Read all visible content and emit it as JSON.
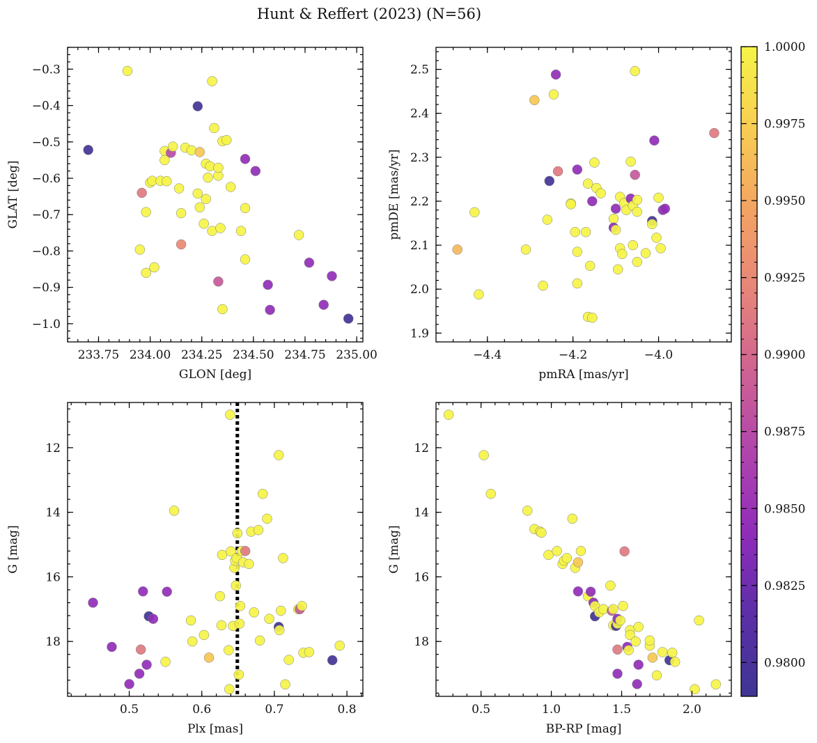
{
  "figure": {
    "title": "Hunt & Reffert (2023) (N=56)"
  },
  "colorbar": {
    "cmap": "plasma",
    "vmin": 0.9789,
    "vmax": 1.0,
    "ticks": [
      0.98,
      0.9825,
      0.985,
      0.9875,
      0.99,
      0.9925,
      0.995,
      0.9975,
      1.0
    ],
    "tick_labels": [
      "0.9800",
      "0.9825",
      "0.9850",
      "0.9875",
      "0.9900",
      "0.9925",
      "0.9950",
      "0.9975",
      "1.0000"
    ],
    "stops": [
      "#3e3594",
      "#5b2fa8",
      "#8f2dba",
      "#b044ad",
      "#cf6292",
      "#e7847a",
      "#f3a363",
      "#f8cd52",
      "#f5f447"
    ]
  },
  "chart_data": [
    {
      "type": "scatter",
      "xlabel": "GLON [deg]",
      "ylabel": "GLAT [deg]",
      "xlim": [
        233.6,
        235.03
      ],
      "ylim": [
        -1.05,
        -0.24
      ],
      "yinvert": false,
      "xticks": [
        233.75,
        234.0,
        234.25,
        234.5,
        234.75,
        235.0
      ],
      "xtick_labels": [
        "233.75",
        "234.00",
        "234.25",
        "234.50",
        "234.75",
        "235.00"
      ],
      "yticks": [
        -1.0,
        -0.9,
        -0.8,
        -0.7,
        -0.6,
        -0.5,
        -0.4,
        -0.3
      ],
      "ytick_labels": [
        "−1.0",
        "−0.9",
        "−0.8",
        "−0.7",
        "−0.6",
        "−0.5",
        "−0.4",
        "−0.3"
      ],
      "x_minor_step": 0.05,
      "y_minor_step": 0.02,
      "points": [
        [
          233.7,
          -0.522,
          0.9792
        ],
        [
          233.89,
          -0.305,
          1.0
        ],
        [
          234.23,
          -0.402,
          0.9792
        ],
        [
          234.3,
          -0.333,
          1.0
        ],
        [
          233.96,
          -0.64,
          0.9912
        ],
        [
          233.95,
          -0.796,
          1.0
        ],
        [
          233.98,
          -0.86,
          1.0
        ],
        [
          233.98,
          -0.693,
          1.0
        ],
        [
          234.0,
          -0.612,
          1.0
        ],
        [
          234.01,
          -0.607,
          1.0
        ],
        [
          234.02,
          -0.845,
          1.0
        ],
        [
          234.05,
          -0.607,
          1.0
        ],
        [
          234.07,
          -0.525,
          1.0
        ],
        [
          234.07,
          -0.55,
          1.0
        ],
        [
          234.08,
          -0.608,
          1.0
        ],
        [
          234.1,
          -0.53,
          0.9875
        ],
        [
          234.11,
          -0.513,
          1.0
        ],
        [
          234.14,
          -0.628,
          1.0
        ],
        [
          234.15,
          -0.696,
          1.0
        ],
        [
          234.15,
          -0.782,
          0.9925
        ],
        [
          234.17,
          -0.516,
          1.0
        ],
        [
          234.2,
          -0.523,
          1.0
        ],
        [
          234.23,
          -0.642,
          1.0
        ],
        [
          234.24,
          -0.68,
          1.0
        ],
        [
          234.24,
          -0.528,
          0.997
        ],
        [
          234.26,
          -0.725,
          1.0
        ],
        [
          234.27,
          -0.657,
          1.0
        ],
        [
          234.27,
          -0.56,
          1.0
        ],
        [
          234.28,
          -0.598,
          1.0
        ],
        [
          234.29,
          -0.567,
          1.0
        ],
        [
          234.3,
          -0.745,
          1.0
        ],
        [
          234.31,
          -0.462,
          1.0
        ],
        [
          234.33,
          -0.593,
          1.0
        ],
        [
          234.33,
          -0.571,
          1.0
        ],
        [
          234.33,
          -0.884,
          0.9887
        ],
        [
          234.34,
          -0.737,
          1.0
        ],
        [
          234.35,
          -0.498,
          1.0
        ],
        [
          234.35,
          -0.96,
          1.0
        ],
        [
          234.37,
          -0.495,
          1.0
        ],
        [
          234.39,
          -0.624,
          1.0
        ],
        [
          234.44,
          -0.745,
          1.0
        ],
        [
          234.46,
          -0.547,
          0.9843
        ],
        [
          234.46,
          -0.682,
          1.0
        ],
        [
          234.46,
          -0.823,
          1.0
        ],
        [
          234.51,
          -0.58,
          0.9843
        ],
        [
          234.57,
          -0.893,
          0.9843
        ],
        [
          234.58,
          -0.962,
          0.9843
        ],
        [
          234.72,
          -0.756,
          1.0
        ],
        [
          234.77,
          -0.832,
          0.9843
        ],
        [
          234.84,
          -0.948,
          0.9843
        ],
        [
          234.88,
          -0.869,
          0.9843
        ],
        [
          234.96,
          -0.986,
          0.9792
        ]
      ]
    },
    {
      "type": "scatter",
      "xlabel": "pmRA [mas/yr]",
      "ylabel": "pmDE [mas/yr]",
      "xlim": [
        -4.52,
        -3.83
      ],
      "ylim": [
        1.88,
        2.55
      ],
      "yinvert": false,
      "xticks": [
        -4.4,
        -4.2,
        -4.0
      ],
      "xtick_labels": [
        "−4.4",
        "−4.2",
        "−4.0"
      ],
      "yticks": [
        1.9,
        2.0,
        2.1,
        2.2,
        2.3,
        2.4,
        2.5
      ],
      "ytick_labels": [
        "1.9",
        "2.0",
        "2.1",
        "2.2",
        "2.3",
        "2.4",
        "2.5"
      ],
      "x_minor_step": 0.04,
      "y_minor_step": 0.02,
      "points": [
        [
          -4.47,
          2.09,
          0.996
        ],
        [
          -4.43,
          2.175,
          1.0
        ],
        [
          -4.42,
          1.988,
          1.0
        ],
        [
          -4.31,
          2.09,
          1.0
        ],
        [
          -4.29,
          2.43,
          0.997
        ],
        [
          -4.27,
          2.008,
          1.0
        ],
        [
          -4.26,
          2.158,
          1.0
        ],
        [
          -4.255,
          2.246,
          0.9792
        ],
        [
          -4.245,
          2.443,
          1.0
        ],
        [
          -4.24,
          2.488,
          0.9843
        ],
        [
          -4.235,
          2.268,
          0.9912
        ],
        [
          -4.205,
          2.195,
          1.0
        ],
        [
          -4.205,
          2.193,
          1.0
        ],
        [
          -4.195,
          2.13,
          1.0
        ],
        [
          -4.19,
          2.085,
          1.0
        ],
        [
          -4.19,
          2.013,
          1.0
        ],
        [
          -4.19,
          2.272,
          0.9843
        ],
        [
          -4.17,
          2.13,
          1.0
        ],
        [
          -4.165,
          2.24,
          1.0
        ],
        [
          -4.165,
          1.937,
          1.0
        ],
        [
          -4.16,
          2.053,
          1.0
        ],
        [
          -4.155,
          1.935,
          1.0
        ],
        [
          -4.155,
          2.2,
          0.9843
        ],
        [
          -4.15,
          2.288,
          1.0
        ],
        [
          -4.145,
          2.23,
          1.0
        ],
        [
          -4.135,
          2.218,
          1.0
        ],
        [
          -4.105,
          2.16,
          1.0
        ],
        [
          -4.105,
          2.14,
          0.9843
        ],
        [
          -4.1,
          2.135,
          1.0
        ],
        [
          -4.1,
          2.183,
          0.9843
        ],
        [
          -4.095,
          2.045,
          1.0
        ],
        [
          -4.09,
          2.21,
          1.0
        ],
        [
          -4.09,
          2.093,
          1.0
        ],
        [
          -4.085,
          2.08,
          1.0
        ],
        [
          -4.08,
          2.196,
          1.0
        ],
        [
          -4.075,
          2.18,
          1.0
        ],
        [
          -4.065,
          2.29,
          1.0
        ],
        [
          -4.065,
          2.206,
          0.9843
        ],
        [
          -4.06,
          2.19,
          1.0
        ],
        [
          -4.06,
          2.1,
          1.0
        ],
        [
          -4.055,
          2.496,
          1.0
        ],
        [
          -4.055,
          2.26,
          0.9887
        ],
        [
          -4.05,
          2.176,
          1.0
        ],
        [
          -4.05,
          2.203,
          1.0
        ],
        [
          -4.05,
          2.062,
          1.0
        ],
        [
          -4.03,
          2.082,
          1.0
        ],
        [
          -4.015,
          2.155,
          0.9792
        ],
        [
          -4.015,
          2.148,
          1.0
        ],
        [
          -4.01,
          2.338,
          0.9843
        ],
        [
          -4.005,
          2.117,
          1.0
        ],
        [
          -4.0,
          2.208,
          1.0
        ],
        [
          -3.995,
          2.093,
          1.0
        ],
        [
          -3.99,
          2.18,
          0.9843
        ],
        [
          -3.985,
          2.183,
          0.9843
        ],
        [
          -3.87,
          2.355,
          0.9912
        ]
      ]
    },
    {
      "type": "scatter",
      "xlabel": "Plx [mas]",
      "ylabel": "G [mag]",
      "xlim": [
        0.415,
        0.822
      ],
      "ylim": [
        10.6,
        19.7
      ],
      "yinvert": true,
      "xticks": [
        0.5,
        0.6,
        0.7,
        0.8
      ],
      "xtick_labels": [
        "0.5",
        "0.6",
        "0.7",
        "0.8"
      ],
      "yticks": [
        12,
        14,
        16,
        18
      ],
      "ytick_labels": [
        "12",
        "14",
        "16",
        "18"
      ],
      "x_minor_step": 0.02,
      "y_minor_step": 0.4,
      "vline": {
        "x": 0.649,
        "style": "dotted",
        "color": "#000000"
      },
      "points": [
        [
          0.45,
          16.8,
          0.9843
        ],
        [
          0.476,
          18.17,
          0.9843
        ],
        [
          0.5,
          19.32,
          0.9843
        ],
        [
          0.514,
          19.0,
          0.9843
        ],
        [
          0.516,
          18.25,
          0.9912
        ],
        [
          0.519,
          16.45,
          0.9843
        ],
        [
          0.524,
          18.72,
          0.9843
        ],
        [
          0.527,
          17.22,
          0.9792
        ],
        [
          0.533,
          17.3,
          0.9843
        ],
        [
          0.55,
          18.63,
          1.0
        ],
        [
          0.552,
          16.46,
          0.9843
        ],
        [
          0.562,
          13.95,
          1.0
        ],
        [
          0.585,
          17.35,
          1.0
        ],
        [
          0.587,
          18.0,
          1.0
        ],
        [
          0.603,
          17.8,
          1.0
        ],
        [
          0.61,
          18.5,
          0.997
        ],
        [
          0.625,
          16.6,
          1.0
        ],
        [
          0.627,
          17.5,
          1.0
        ],
        [
          0.628,
          15.32,
          1.0
        ],
        [
          0.637,
          18.27,
          1.0
        ],
        [
          0.638,
          19.48,
          1.0
        ],
        [
          0.639,
          10.98,
          1.0
        ],
        [
          0.64,
          15.21,
          1.0
        ],
        [
          0.643,
          17.52,
          1.0
        ],
        [
          0.645,
          15.72,
          1.0
        ],
        [
          0.646,
          15.5,
          1.0
        ],
        [
          0.647,
          16.27,
          1.0
        ],
        [
          0.648,
          15.42,
          1.0
        ],
        [
          0.649,
          14.65,
          1.0
        ],
        [
          0.651,
          19.03,
          1.0
        ],
        [
          0.652,
          17.45,
          1.0
        ],
        [
          0.653,
          16.9,
          1.0
        ],
        [
          0.655,
          15.2,
          1.0
        ],
        [
          0.657,
          15.55,
          1.0
        ],
        [
          0.66,
          15.2,
          0.9912
        ],
        [
          0.665,
          15.6,
          1.0
        ],
        [
          0.668,
          14.6,
          1.0
        ],
        [
          0.672,
          17.1,
          1.0
        ],
        [
          0.678,
          14.55,
          1.0
        ],
        [
          0.68,
          17.97,
          1.0
        ],
        [
          0.684,
          13.43,
          1.0
        ],
        [
          0.69,
          14.2,
          1.0
        ],
        [
          0.693,
          17.3,
          1.0
        ],
        [
          0.706,
          17.55,
          0.9792
        ],
        [
          0.706,
          12.23,
          1.0
        ],
        [
          0.707,
          17.65,
          1.0
        ],
        [
          0.709,
          17.05,
          1.0
        ],
        [
          0.712,
          15.42,
          1.0
        ],
        [
          0.715,
          19.33,
          1.0
        ],
        [
          0.72,
          18.57,
          1.0
        ],
        [
          0.733,
          17.0,
          1.0
        ],
        [
          0.735,
          17.0,
          0.9887
        ],
        [
          0.738,
          16.9,
          1.0
        ],
        [
          0.74,
          18.35,
          1.0
        ],
        [
          0.748,
          18.33,
          1.0
        ],
        [
          0.78,
          18.58,
          0.9792
        ],
        [
          0.79,
          18.13,
          1.0
        ]
      ]
    },
    {
      "type": "scatter",
      "xlabel": "BP-RP [mag]",
      "ylabel": "G [mag]",
      "xlim": [
        0.18,
        2.28
      ],
      "ylim": [
        10.6,
        19.7
      ],
      "yinvert": true,
      "xticks": [
        0.5,
        1.0,
        1.5,
        2.0
      ],
      "xtick_labels": [
        "0.5",
        "1.0",
        "1.5",
        "2.0"
      ],
      "yticks": [
        12,
        14,
        16,
        18
      ],
      "ytick_labels": [
        "12",
        "14",
        "16",
        "18"
      ],
      "x_minor_step": 0.1,
      "y_minor_step": 0.4,
      "points": [
        [
          0.27,
          10.98,
          1.0
        ],
        [
          0.52,
          12.23,
          1.0
        ],
        [
          0.57,
          13.43,
          1.0
        ],
        [
          0.83,
          13.95,
          1.0
        ],
        [
          0.88,
          14.52,
          1.0
        ],
        [
          0.92,
          14.6,
          1.0
        ],
        [
          0.93,
          14.63,
          1.0
        ],
        [
          0.98,
          15.32,
          1.0
        ],
        [
          1.04,
          15.2,
          1.0
        ],
        [
          1.08,
          15.6,
          1.0
        ],
        [
          1.09,
          15.5,
          1.0
        ],
        [
          1.11,
          15.42,
          1.0
        ],
        [
          1.15,
          14.2,
          1.0
        ],
        [
          1.17,
          15.72,
          1.0
        ],
        [
          1.19,
          15.55,
          0.997
        ],
        [
          1.19,
          16.45,
          0.9843
        ],
        [
          1.21,
          15.2,
          1.0
        ],
        [
          1.26,
          16.6,
          1.0
        ],
        [
          1.28,
          16.46,
          0.9843
        ],
        [
          1.3,
          16.8,
          0.9843
        ],
        [
          1.31,
          17.22,
          0.9792
        ],
        [
          1.31,
          16.9,
          1.0
        ],
        [
          1.34,
          17.1,
          1.0
        ],
        [
          1.37,
          17.0,
          1.0
        ],
        [
          1.42,
          16.27,
          1.0
        ],
        [
          1.43,
          17.05,
          0.9887
        ],
        [
          1.44,
          17.0,
          1.0
        ],
        [
          1.44,
          17.5,
          1.0
        ],
        [
          1.46,
          17.52,
          0.9792
        ],
        [
          1.47,
          17.45,
          1.0
        ],
        [
          1.47,
          17.3,
          0.9843
        ],
        [
          1.47,
          18.25,
          0.9912
        ],
        [
          1.47,
          19.0,
          0.9843
        ],
        [
          1.49,
          17.35,
          1.0
        ],
        [
          1.51,
          16.9,
          1.0
        ],
        [
          1.52,
          15.21,
          0.9912
        ],
        [
          1.54,
          18.17,
          0.9843
        ],
        [
          1.55,
          18.27,
          1.0
        ],
        [
          1.56,
          17.65,
          1.0
        ],
        [
          1.56,
          17.8,
          1.0
        ],
        [
          1.6,
          18.0,
          1.0
        ],
        [
          1.61,
          19.32,
          0.9843
        ],
        [
          1.62,
          17.55,
          1.0
        ],
        [
          1.62,
          18.72,
          0.9843
        ],
        [
          1.7,
          18.13,
          1.0
        ],
        [
          1.7,
          17.97,
          1.0
        ],
        [
          1.72,
          18.5,
          0.997
        ],
        [
          1.75,
          19.05,
          1.0
        ],
        [
          1.79,
          18.33,
          1.0
        ],
        [
          1.84,
          18.58,
          0.9792
        ],
        [
          1.86,
          18.35,
          1.0
        ],
        [
          1.88,
          18.63,
          1.0
        ],
        [
          2.02,
          19.48,
          1.0
        ],
        [
          2.05,
          17.35,
          1.0
        ],
        [
          2.17,
          19.33,
          1.0
        ]
      ]
    }
  ]
}
